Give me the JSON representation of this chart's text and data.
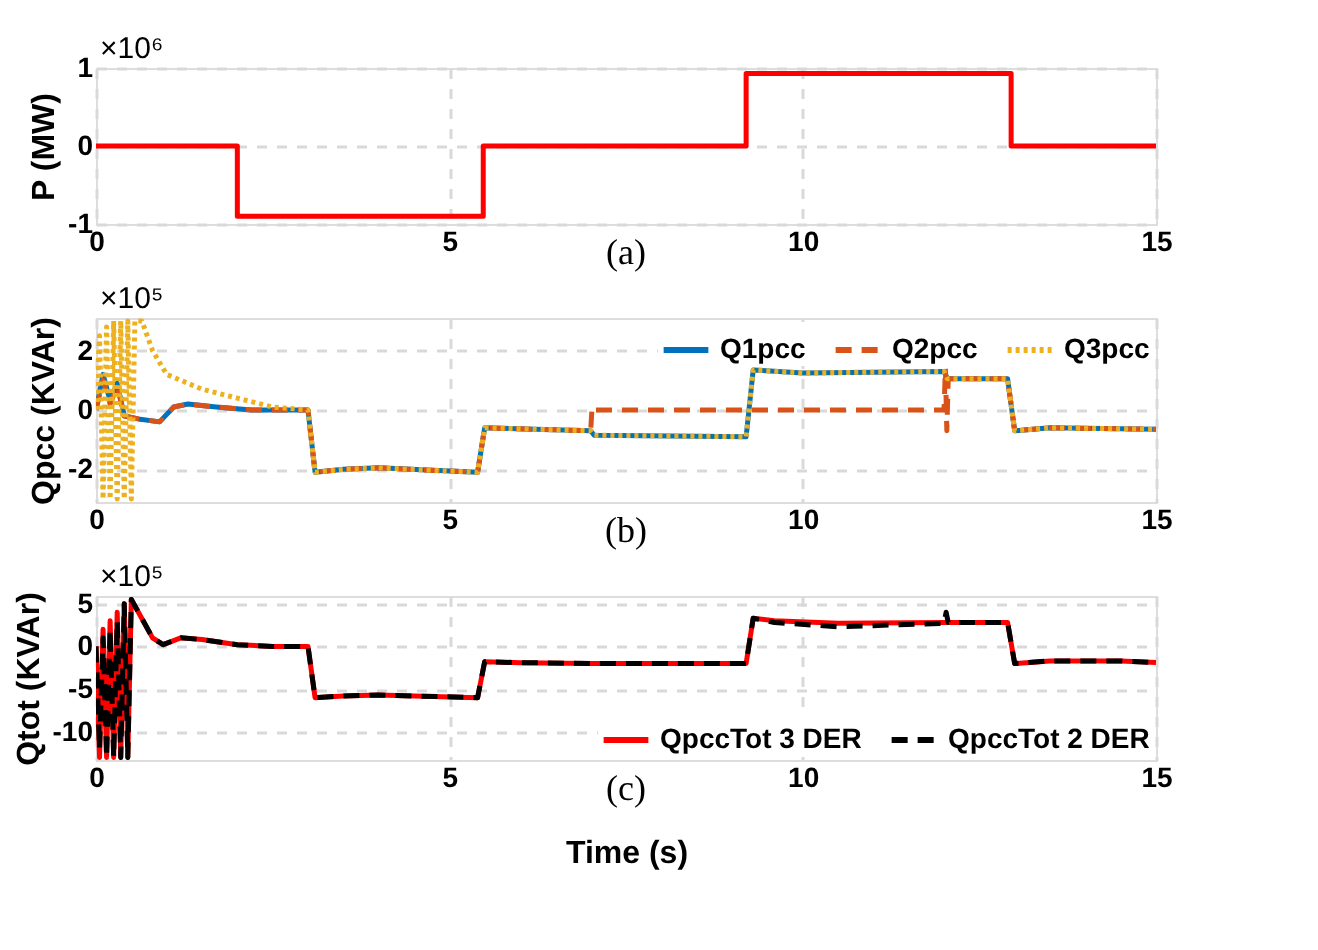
{
  "chart_data": [
    {
      "type": "line",
      "ylabel": "P (MW)",
      "annotations": [
        "×10⁶",
        "(a)"
      ],
      "xlim": [
        0,
        15
      ],
      "xticks": [
        0,
        5,
        10,
        15
      ],
      "ylim": [
        -1,
        1
      ],
      "yticks": [
        -1,
        0,
        1
      ],
      "grid": true,
      "legend": false,
      "series": [
        {
          "color": "#ff0000",
          "line_style": "solid",
          "x": [
            0,
            2.0,
            2.0,
            5.48,
            5.48,
            9.2,
            9.2,
            12.95,
            12.95,
            15
          ],
          "values": [
            0,
            0,
            -0.9,
            -0.9,
            0,
            0,
            0.93,
            0.93,
            0,
            0
          ]
        }
      ]
    },
    {
      "type": "line",
      "ylabel": "Qpcc (KVAr)",
      "annotations": [
        "×10⁵",
        "(b)"
      ],
      "xlim": [
        0,
        15
      ],
      "xticks": [
        0,
        5,
        10,
        15
      ],
      "ylim": [
        -3.1,
        3.1
      ],
      "yticks": [
        -2,
        0,
        2
      ],
      "grid": true,
      "legend": "top right",
      "series": [
        {
          "name": "Q1pcc",
          "color": "#0072bd",
          "line_style": "solid",
          "x": [
            0,
            0.1,
            0.2,
            0.3,
            0.4,
            0.6,
            0.9,
            1.1,
            1.3,
            1.7,
            2.2,
            3.0,
            3.1,
            3.5,
            4.0,
            5.4,
            5.5,
            7.0,
            7.05,
            9.2,
            9.3,
            10,
            12.0,
            12.05,
            12.9,
            13.0,
            13.5,
            15
          ],
          "values": [
            0,
            1.2,
            0.3,
            0.9,
            -0.2,
            -0.3,
            -0.4,
            0.1,
            0.2,
            0.1,
            0,
            0,
            -2.1,
            -2.0,
            -1.95,
            -2.1,
            -0.6,
            -0.7,
            -0.85,
            -0.9,
            1.35,
            1.25,
            1.3,
            1.05,
            1.05,
            -0.7,
            -0.6,
            -0.65
          ]
        },
        {
          "name": "Q2pcc",
          "color": "#d95319",
          "line_style": "dashed",
          "x": [
            0,
            0.1,
            0.2,
            0.3,
            0.4,
            0.6,
            0.9,
            1.1,
            1.3,
            1.7,
            2.2,
            3.0,
            3.1,
            3.5,
            4.0,
            5.4,
            5.5,
            7.0,
            7.02,
            7.05,
            12.0,
            12.02,
            12.04,
            12.06,
            12.9,
            13.0,
            13.5,
            15
          ],
          "values": [
            0,
            1.0,
            0.2,
            0.8,
            -0.2,
            -0.3,
            -0.4,
            0.1,
            0.2,
            0.1,
            0,
            0,
            -2.1,
            -2.0,
            -1.95,
            -2.1,
            -0.6,
            -0.7,
            0.1,
            0,
            0,
            1.4,
            -0.7,
            1.05,
            1.05,
            -0.7,
            -0.6,
            -0.65
          ]
        },
        {
          "name": "Q3pcc",
          "color": "#edb120",
          "line_style": "dotted",
          "x": [
            0,
            0.05,
            0.1,
            0.15,
            0.2,
            0.25,
            0.3,
            0.35,
            0.4,
            0.45,
            0.5,
            0.55,
            0.65,
            0.8,
            1.0,
            1.5,
            2.0,
            2.5,
            3.0,
            3.1,
            3.5,
            4.0,
            5.4,
            5.5,
            7.0,
            7.05,
            9.2,
            9.3,
            10,
            12.0,
            12.05,
            12.9,
            13.0,
            13.5,
            15
          ],
          "values": [
            0,
            2.5,
            -3,
            2.8,
            -3,
            3,
            -3,
            3,
            -3,
            3,
            -3,
            3,
            3,
            2.0,
            1.2,
            0.7,
            0.4,
            0.1,
            0,
            -2.1,
            -2.0,
            -1.95,
            -2.1,
            -0.6,
            -0.7,
            -0.85,
            -0.9,
            1.35,
            1.25,
            1.3,
            1.05,
            1.05,
            -0.7,
            -0.6,
            -0.65
          ]
        }
      ]
    },
    {
      "type": "line",
      "ylabel": "Qtot (KVAr)",
      "xlabel": "Time (s)",
      "annotations": [
        "×10⁵",
        "(c)"
      ],
      "xlim": [
        0,
        15
      ],
      "xticks": [
        0,
        5,
        10,
        15
      ],
      "ylim": [
        -13.3,
        5.9
      ],
      "yticks": [
        -10,
        -5,
        0,
        5
      ],
      "grid": true,
      "legend": "bottom right",
      "series": [
        {
          "name": "QpccTot 3 DER",
          "color": "#ff0000",
          "line_style": "solid",
          "x": [
            0,
            0.05,
            0.1,
            0.15,
            0.2,
            0.25,
            0.3,
            0.35,
            0.4,
            0.45,
            0.5,
            0.6,
            0.8,
            0.95,
            1.2,
            1.5,
            2.0,
            2.5,
            3.0,
            3.1,
            3.5,
            4.0,
            5.4,
            5.5,
            6.0,
            7.0,
            9.2,
            9.3,
            9.6,
            10.5,
            12.0,
            12.9,
            13.0,
            13.5,
            14.5,
            15
          ],
          "values": [
            0,
            -13,
            2,
            -13,
            3,
            -13,
            4,
            -13,
            5,
            -13,
            5.5,
            4,
            1,
            0.2,
            1,
            0.8,
            0.2,
            0,
            0,
            -6,
            -5.8,
            -5.7,
            -6,
            -1.8,
            -1.9,
            -2,
            -2,
            3.3,
            3,
            2.7,
            2.8,
            2.8,
            -2,
            -1.7,
            -1.7,
            -1.9
          ]
        },
        {
          "name": "QpccTot 2 DER",
          "color": "#000000",
          "line_style": "dashed",
          "x": [
            0,
            0.05,
            0.1,
            0.15,
            0.2,
            0.25,
            0.3,
            0.35,
            0.4,
            0.45,
            0.5,
            0.6,
            0.8,
            0.95,
            1.2,
            1.5,
            2.0,
            2.5,
            3.0,
            3.1,
            3.5,
            4.0,
            5.4,
            5.5,
            6.0,
            7.0,
            9.2,
            9.3,
            9.6,
            10.5,
            12.0,
            12.03,
            12.06,
            12.9,
            13.0,
            13.5,
            14.5,
            15
          ],
          "values": [
            0,
            -12,
            1,
            -13,
            2,
            -13,
            3,
            -13,
            5,
            -13,
            5.5,
            4,
            1,
            0.2,
            1,
            0.8,
            0.2,
            0,
            0,
            -6,
            -5.8,
            -5.7,
            -6,
            -1.8,
            -1.9,
            -2,
            -2,
            3.3,
            2.8,
            2.3,
            2.7,
            4,
            2.8,
            2.8,
            -2,
            -1.7,
            -1.7,
            -1.9
          ]
        }
      ]
    }
  ]
}
